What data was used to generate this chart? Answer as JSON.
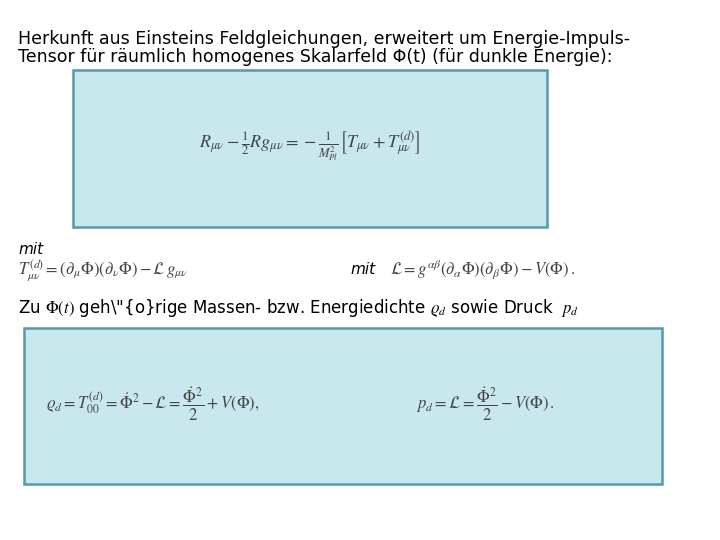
{
  "background_color": "#ffffff",
  "title_line1": "Herkunft aus Einsteins Feldgleichungen, erweitert um Energie-Impuls-",
  "title_line2": "Tensor für räumlich homogenes Skalarfeld Φ(t) (für dunkle Energie):",
  "box1_facecolor": "#c8e8ee",
  "box1_edgecolor": "#5599aa",
  "box2_facecolor": "#c8e8ee",
  "box2_edgecolor": "#5599aa",
  "mit_label": "mit",
  "desc_line": "Zu Φ(t) gehörige Massen- bzw. Energiedichte ",
  "desc_rho": "\\varrho_d",
  "desc_mid": " sowie Druck  ",
  "desc_p": "p_d",
  "title_fontsize": 12.5,
  "body_fontsize": 11,
  "eq1_fontsize": 13,
  "eq2_fontsize": 12,
  "eq3_fontsize": 12,
  "desc_fontsize": 12,
  "lw": 1.8
}
